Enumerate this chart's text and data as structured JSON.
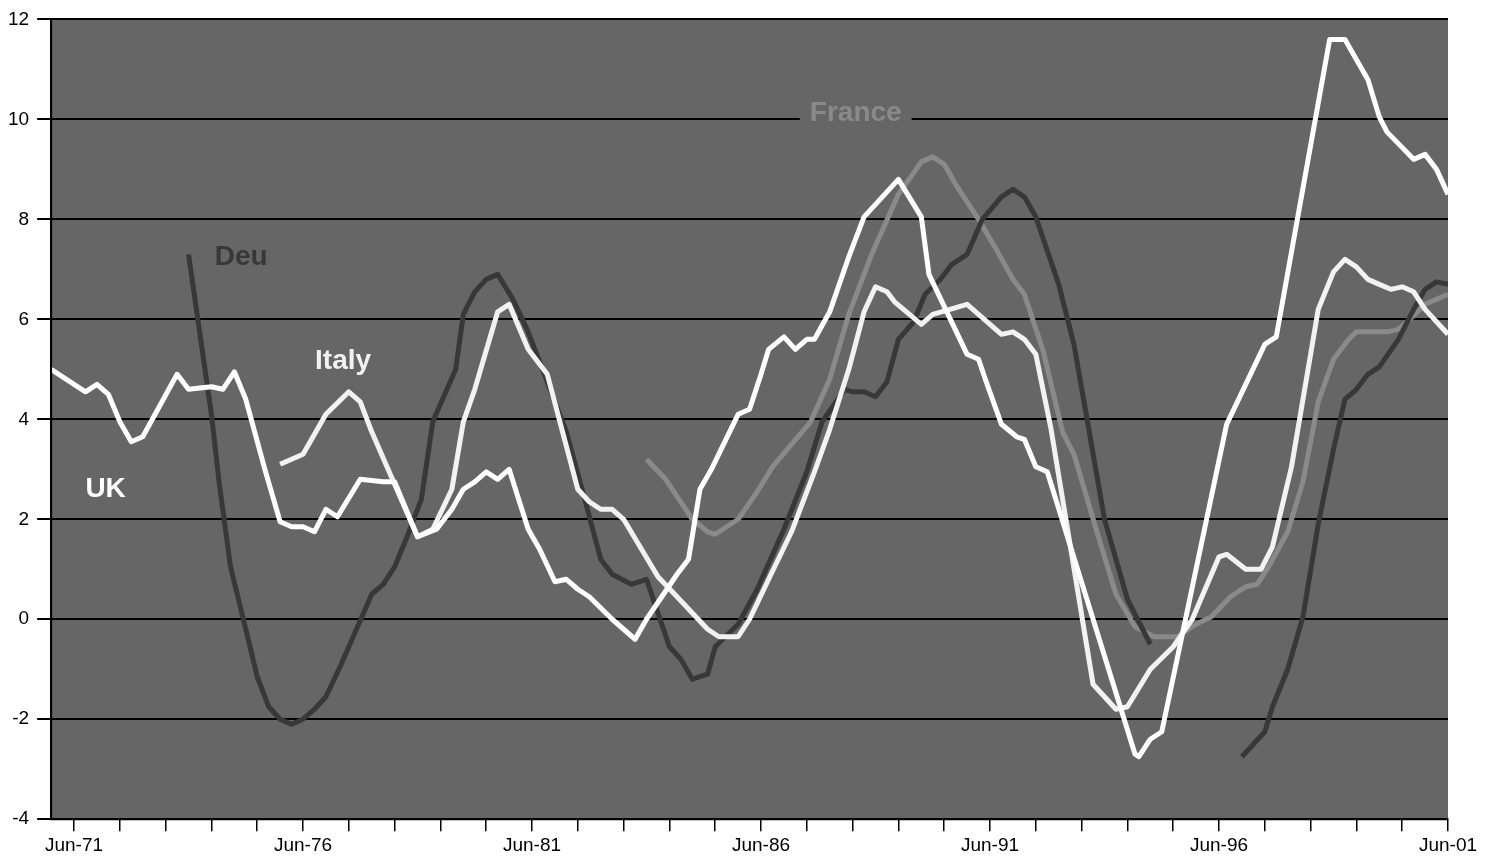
{
  "chart_data": {
    "type": "line",
    "xlim": [
      "1970-12",
      "2001-06"
    ],
    "ylim": [
      -4,
      12
    ],
    "yticks": [
      -4,
      -2,
      0,
      2,
      4,
      6,
      8,
      10,
      12
    ],
    "grid": "y",
    "line_style": "solid",
    "xticks": [
      {
        "value": "1971-06",
        "label": "Jun-71"
      },
      {
        "value": "1972-06",
        "label": null
      },
      {
        "value": "1973-06",
        "label": null
      },
      {
        "value": "1974-06",
        "label": null
      },
      {
        "value": "1975-06",
        "label": null
      },
      {
        "value": "1976-06",
        "label": "Jun-76"
      },
      {
        "value": "1977-06",
        "label": null
      },
      {
        "value": "1978-06",
        "label": null
      },
      {
        "value": "1979-06",
        "label": null
      },
      {
        "value": "1980-06",
        "label": null
      },
      {
        "value": "1981-06",
        "label": "Jun-81"
      },
      {
        "value": "1982-06",
        "label": null
      },
      {
        "value": "1983-06",
        "label": null
      },
      {
        "value": "1984-06",
        "label": null
      },
      {
        "value": "1985-06",
        "label": null
      },
      {
        "value": "1986-06",
        "label": "Jun-86"
      },
      {
        "value": "1987-06",
        "label": null
      },
      {
        "value": "1988-06",
        "label": null
      },
      {
        "value": "1989-06",
        "label": null
      },
      {
        "value": "1990-06",
        "label": null
      },
      {
        "value": "1991-06",
        "label": "Jun-91"
      },
      {
        "value": "1992-06",
        "label": null
      },
      {
        "value": "1993-06",
        "label": null
      },
      {
        "value": "1994-06",
        "label": null
      },
      {
        "value": "1995-06",
        "label": null
      },
      {
        "value": "1996-06",
        "label": "Jun-96"
      },
      {
        "value": "1997-06",
        "label": null
      },
      {
        "value": "1998-06",
        "label": null
      },
      {
        "value": "1999-06",
        "label": null
      },
      {
        "value": "2000-06",
        "label": null
      },
      {
        "value": "2001-06",
        "label": "Jun-01"
      }
    ],
    "series": [
      {
        "name": "UK",
        "color": "#ffffff",
        "x": [
          "1970-12",
          "1971-09",
          "1971-12",
          "1972-03",
          "1972-06",
          "1972-09",
          "1972-12",
          "1973-09",
          "1973-12",
          "1974-06",
          "1974-09",
          "1974-12",
          "1975-03",
          "1975-08",
          "1975-12",
          "1976-03",
          "1976-06",
          "1976-09",
          "1976-12",
          "1977-03",
          "1977-09",
          "1978-03",
          "1978-06",
          "1978-12",
          "1979-05",
          "1979-09",
          "1979-12",
          "1980-03",
          "1980-06",
          "1980-09",
          "1980-12",
          "1981-05",
          "1981-08",
          "1981-12",
          "1982-03",
          "1982-06",
          "1982-09",
          "1983-03",
          "1983-06",
          "1983-09",
          "1983-12",
          "1984-08",
          "1984-11",
          "1985-02",
          "1985-05",
          "1985-12",
          "1986-03",
          "1986-06",
          "1986-08",
          "1986-12",
          "1987-03",
          "1987-06",
          "1987-08",
          "1987-12",
          "1988-05",
          "1988-09",
          "1989-06",
          "1989-12",
          "1990-02",
          "1990-12",
          "1991-03",
          "1991-05",
          "1991-09",
          "1992-01",
          "1992-03",
          "1992-06",
          "1992-09",
          "1994-08",
          "1994-09",
          "1994-12",
          "1995-03",
          "1996-08",
          "1997-06",
          "1997-09",
          "1998-11",
          "1999-03",
          "1999-09",
          "1999-12",
          "2000-02",
          "2000-09",
          "2000-12",
          "2001-03",
          "2001-06"
        ],
        "values": [
          5.0,
          4.55,
          4.7,
          4.5,
          3.95,
          3.55,
          3.65,
          4.9,
          4.6,
          4.65,
          4.6,
          4.95,
          4.4,
          3.0,
          1.95,
          1.85,
          1.85,
          1.75,
          2.2,
          2.05,
          2.8,
          2.75,
          2.75,
          1.65,
          1.8,
          2.2,
          2.6,
          2.75,
          2.95,
          2.8,
          3.0,
          1.8,
          1.4,
          0.75,
          0.8,
          0.6,
          0.45,
          0.0,
          -0.2,
          -0.4,
          0.0,
          0.9,
          1.2,
          2.6,
          3.0,
          4.1,
          4.2,
          4.9,
          5.4,
          5.65,
          5.4,
          5.6,
          5.6,
          6.15,
          7.25,
          8.05,
          8.8,
          8.05,
          6.9,
          5.3,
          5.2,
          4.75,
          3.9,
          3.65,
          3.6,
          3.05,
          2.95,
          -2.7,
          -2.75,
          -2.4,
          -2.25,
          3.9,
          5.5,
          5.65,
          11.6,
          11.6,
          10.8,
          10.05,
          9.75,
          9.2,
          9.3,
          9.0,
          8.5
        ]
      },
      {
        "name": "Italy",
        "color": "#f2f2f2",
        "x": [
          "1975-12",
          "1976-06",
          "1976-12",
          "1977-06",
          "1977-09",
          "1977-12",
          "1978-12",
          "1979-04",
          "1979-09",
          "1979-12",
          "1980-03",
          "1980-09",
          "1980-12",
          "1981-05",
          "1981-10",
          "1982-02",
          "1982-06",
          "1982-09",
          "1982-12",
          "1983-03",
          "1983-06",
          "1984-03",
          "1984-08",
          "1985-04",
          "1985-07",
          "1985-12",
          "1986-03",
          "1986-08",
          "1987-02",
          "1987-08",
          "1987-12",
          "1988-05",
          "1988-09",
          "1988-12",
          "1989-03",
          "1989-05",
          "1989-12",
          "1990-03",
          "1990-12",
          "1991-09",
          "1991-12",
          "1992-03",
          "1992-06",
          "1992-10",
          "1993-09",
          "1994-03",
          "1994-06",
          "1994-12",
          "1995-06",
          "1995-11",
          "1996-06",
          "1996-08",
          "1997-01",
          "1997-05",
          "1997-08",
          "1998-01",
          "1998-08",
          "1998-12",
          "1999-03",
          "1999-06",
          "1999-09",
          "1999-12",
          "2000-03",
          "2000-06",
          "2000-09",
          "2000-12",
          "2001-06"
        ],
        "values": [
          3.1,
          3.3,
          4.1,
          4.55,
          4.35,
          3.75,
          1.65,
          1.8,
          2.6,
          3.95,
          4.6,
          6.15,
          6.3,
          5.4,
          4.9,
          3.75,
          2.6,
          2.35,
          2.2,
          2.2,
          2.0,
          0.85,
          0.45,
          -0.2,
          -0.35,
          -0.35,
          0.0,
          0.8,
          1.75,
          2.95,
          3.8,
          5.0,
          6.15,
          6.65,
          6.55,
          6.35,
          5.9,
          6.1,
          6.3,
          5.7,
          5.75,
          5.6,
          5.3,
          3.8,
          -1.3,
          -1.8,
          -1.75,
          -1.0,
          -0.55,
          0.0,
          1.25,
          1.3,
          1.0,
          1.0,
          1.45,
          3.05,
          6.2,
          6.95,
          7.2,
          7.05,
          6.8,
          6.7,
          6.6,
          6.65,
          6.55,
          6.2,
          5.7
        ]
      },
      {
        "name": "Deu",
        "color": "#383838",
        "x": [
          "1973-12",
          "1974-06",
          "1974-08",
          "1974-11",
          "1975-03",
          "1975-06",
          "1975-09",
          "1975-12",
          "1976-03",
          "1976-06",
          "1976-09",
          "1976-12",
          "1977-04",
          "1977-08",
          "1977-12",
          "1978-03",
          "1978-06",
          "1978-09",
          "1979-01",
          "1979-04",
          "1979-10",
          "1979-12",
          "1980-03",
          "1980-06",
          "1980-09",
          "1981-01",
          "1981-05",
          "1982-03",
          "1982-08",
          "1982-12",
          "1983-03",
          "1983-08",
          "1983-12",
          "1984-06",
          "1984-09",
          "1984-12",
          "1985-04",
          "1985-06",
          "1985-12",
          "1986-05",
          "1986-12",
          "1987-06",
          "1987-10",
          "1988-04",
          "1988-06",
          "1988-09",
          "1988-12",
          "1989-03",
          "1989-06",
          "1989-10",
          "1990-01",
          "1990-05",
          "1990-08",
          "1990-12",
          "1991-04",
          "1991-09",
          "1991-12",
          "1992-03",
          "1992-06",
          "1992-12",
          "1993-04",
          "1993-08",
          "1993-12",
          "1994-06",
          "1994-12",
          "1995-12",
          "1996-12",
          "1997-03",
          "1997-06",
          "1997-08",
          "1997-12",
          "1998-04",
          "1998-08",
          "1998-12",
          "1999-03",
          "1999-06",
          "1999-09",
          "1999-12",
          "2000-05",
          "2000-09",
          "2000-12",
          "2001-03",
          "2001-06"
        ],
        "values": [
          7.3,
          4.1,
          2.75,
          1.05,
          -0.2,
          -1.15,
          -1.75,
          -2.0,
          -2.1,
          -2.0,
          -1.8,
          -1.55,
          -0.9,
          -0.2,
          0.5,
          0.7,
          1.05,
          1.6,
          2.4,
          3.95,
          5.0,
          6.1,
          6.55,
          6.8,
          6.9,
          6.4,
          5.75,
          3.75,
          2.35,
          1.2,
          0.9,
          0.7,
          0.8,
          -0.55,
          -0.8,
          -1.2,
          -1.1,
          -0.55,
          -0.1,
          0.6,
          1.8,
          2.95,
          3.95,
          4.6,
          4.55,
          4.55,
          4.45,
          4.75,
          5.6,
          5.95,
          6.5,
          6.8,
          7.1,
          7.3,
          8.0,
          8.45,
          8.6,
          8.45,
          8.05,
          6.7,
          5.5,
          3.75,
          2.0,
          0.4,
          -0.5,
          null,
          -2.75,
          -2.5,
          -2.25,
          -1.75,
          -1.0,
          0.05,
          1.9,
          3.4,
          4.4,
          4.6,
          4.9,
          5.05,
          5.6,
          6.2,
          6.6,
          6.75,
          6.7
        ]
      },
      {
        "name": "France",
        "color": "#8a8a8a",
        "x": [
          "1983-12",
          "1984-05",
          "1984-12",
          "1985-04",
          "1985-06",
          "1985-12",
          "1986-05",
          "1986-09",
          "1987-07",
          "1987-12",
          "1988-05",
          "1988-11",
          "1989-06",
          "1989-12",
          "1990-03",
          "1990-06",
          "1990-09",
          "1991-03",
          "1991-08",
          "1991-12",
          "1992-03",
          "1992-08",
          "1993-01",
          "1993-04",
          "1993-10",
          "1994-03",
          "1994-08",
          "1995-01",
          "1995-07",
          "1995-12",
          "1996-04",
          "1996-09",
          "1997-01",
          "1997-04",
          "1997-07",
          "1997-12",
          "1998-04",
          "1998-08",
          "1998-12",
          "1999-04",
          "1999-06",
          "2000-02",
          "2000-05",
          "2000-08",
          "2000-12",
          "2001-06"
        ],
        "values": [
          3.2,
          2.8,
          2.0,
          1.75,
          1.7,
          2.0,
          2.55,
          3.05,
          3.95,
          4.8,
          6.1,
          7.3,
          8.5,
          9.15,
          9.25,
          9.1,
          8.7,
          8.0,
          7.35,
          6.8,
          6.5,
          5.35,
          3.75,
          3.3,
          1.75,
          0.5,
          -0.15,
          -0.35,
          -0.35,
          -0.1,
          0.05,
          0.45,
          0.65,
          0.7,
          1.05,
          1.75,
          2.75,
          4.35,
          5.2,
          5.6,
          5.75,
          5.75,
          5.8,
          6.0,
          6.3,
          6.5
        ]
      }
    ]
  }
}
